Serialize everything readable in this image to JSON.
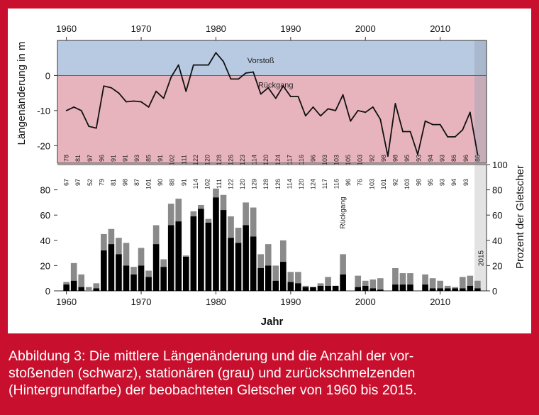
{
  "caption": "Abbildung 3: Die mittlere Längenänderung und die Anzahl der vor-stoßenden (schwarz), stationären (grau) und zurückschmelzenden (Hintergrundfarbe) der beobachteten Gletscher von 1960 bis 2015.",
  "caption_lines": [
    "Abbildung 3: Die mittlere Längenänderung und die Anzahl der vor-",
    "stoßenden (schwarz), stationären (grau) und zurückschmelzenden",
    "(Hintergrundfarbe) der beobachteten Gletscher von 1960 bis 2015."
  ],
  "colors": {
    "frame": "#c8102e",
    "advance_band": "#b8c9e2",
    "retreat_band": "#e7b4bd",
    "advancing_bars": "#000000",
    "stationary_bars": "#8a8a8a",
    "panel_2015": "#e3e3e3"
  },
  "chart_data": [
    {
      "type": "line",
      "ylabel": "Längenänderung in m",
      "xlim": [
        1959,
        2016
      ],
      "ylim": [
        -25,
        10
      ],
      "yticks": [
        0,
        -10,
        -20
      ],
      "xticks": [
        1960,
        1970,
        1980,
        1990,
        2000,
        2010
      ],
      "grid": false,
      "zones": [
        {
          "label": "Vorstoß",
          "from": 0,
          "to": 10
        },
        {
          "label": "Rückgang",
          "from": -25,
          "to": 0
        }
      ],
      "x": [
        1960,
        1961,
        1962,
        1963,
        1964,
        1965,
        1966,
        1967,
        1968,
        1969,
        1970,
        1971,
        1972,
        1973,
        1974,
        1975,
        1976,
        1977,
        1978,
        1979,
        1980,
        1981,
        1982,
        1983,
        1984,
        1985,
        1986,
        1987,
        1988,
        1989,
        1990,
        1991,
        1992,
        1993,
        1994,
        1995,
        1996,
        1997,
        1998,
        1999,
        2000,
        2001,
        2002,
        2003,
        2004,
        2005,
        2006,
        2007,
        2008,
        2009,
        2010,
        2011,
        2012,
        2013,
        2014,
        2015
      ],
      "y": [
        -10,
        -9,
        -10,
        -14.5,
        -15,
        -3,
        -3.5,
        -5,
        -7.5,
        -7.3,
        -7.5,
        -9,
        -4.5,
        -6.5,
        -0.5,
        3,
        -4.5,
        3,
        3,
        3,
        6.5,
        4,
        -1,
        -1,
        0.7,
        1,
        -5.3,
        -3.5,
        -6.5,
        -3,
        -6,
        -6,
        -11.5,
        -9,
        -11.5,
        -9.5,
        -10,
        -5.5,
        -13,
        -10,
        -10.5,
        -9,
        -12.5,
        -23,
        -8,
        -16,
        -16,
        -22.5,
        -13,
        -14,
        -14,
        -17.5,
        -17.5,
        -15.5,
        -10.5,
        -22.5
      ],
      "sample_counts_top": [
        "78",
        "81",
        "97",
        "96",
        "91",
        "91",
        "93",
        "85",
        "91",
        "102",
        "111",
        "122",
        "120",
        "128",
        "126",
        "123",
        "114",
        "120",
        "124",
        "117",
        "116",
        "96",
        "103",
        "103",
        "105",
        "103",
        "92",
        "98",
        "98",
        "95",
        "93",
        "94",
        "93",
        "86",
        "96",
        "86"
      ],
      "sample_counts_bottom": [
        "67",
        "97",
        "52",
        "79",
        "81",
        "98",
        "87",
        "101",
        "90",
        "88",
        "91",
        "114",
        "102",
        "111",
        "122",
        "120",
        "129",
        "128",
        "126",
        "114",
        "120",
        "124",
        "117",
        "116",
        "96",
        "76",
        "103",
        "101",
        "92",
        "103",
        "98",
        "95",
        "93",
        "94",
        "93",
        "91"
      ]
    },
    {
      "type": "bar",
      "xlabel": "Jahr",
      "ylabel": "Prozent der Gletscher",
      "xlim": [
        1959,
        2016
      ],
      "ylim": [
        0,
        100
      ],
      "yticks": [
        0,
        20,
        40,
        60,
        80
      ],
      "yticks_right": [
        0,
        20,
        40,
        60,
        80,
        100
      ],
      "xticks": [
        1960,
        1970,
        1980,
        1990,
        2000,
        2010
      ],
      "grid": false,
      "annotations": [
        "Rückgang",
        "2015"
      ],
      "x": [
        1960,
        1961,
        1962,
        1963,
        1964,
        1965,
        1966,
        1967,
        1968,
        1969,
        1970,
        1971,
        1972,
        1973,
        1974,
        1975,
        1976,
        1977,
        1978,
        1979,
        1980,
        1981,
        1982,
        1983,
        1984,
        1985,
        1986,
        1987,
        1988,
        1989,
        1990,
        1991,
        1992,
        1993,
        1994,
        1995,
        1996,
        1997,
        1998,
        1999,
        2000,
        2001,
        2002,
        2003,
        2004,
        2005,
        2006,
        2007,
        2008,
        2009,
        2010,
        2011,
        2012,
        2013,
        2014,
        2015
      ],
      "series": [
        {
          "name": "vorstoßend (schwarz)",
          "values": [
            5,
            8,
            3,
            0,
            2,
            32,
            37,
            29,
            20,
            13,
            20,
            11,
            37,
            19,
            52,
            55,
            27,
            59,
            65,
            54,
            74,
            64,
            42,
            38,
            52,
            43,
            18,
            20,
            8,
            23,
            7,
            6,
            3,
            3,
            4,
            4,
            4,
            13,
            0,
            3,
            4,
            2,
            1,
            0,
            5,
            5,
            5,
            0,
            5,
            2,
            2,
            2,
            2,
            2,
            4,
            2
          ]
        },
        {
          "name": "stationär (grau)",
          "values": [
            2,
            14,
            10,
            3,
            4,
            13,
            12,
            13,
            18,
            6,
            14,
            5,
            15,
            6,
            17,
            18,
            1,
            4,
            3,
            3,
            7,
            12,
            17,
            12,
            18,
            23,
            11,
            17,
            12,
            17,
            8,
            9,
            1,
            0,
            2,
            7,
            0,
            16,
            0,
            9,
            4,
            7,
            9,
            0,
            13,
            9,
            9,
            0,
            8,
            8,
            6,
            2,
            1,
            9,
            8,
            6
          ]
        }
      ]
    }
  ]
}
